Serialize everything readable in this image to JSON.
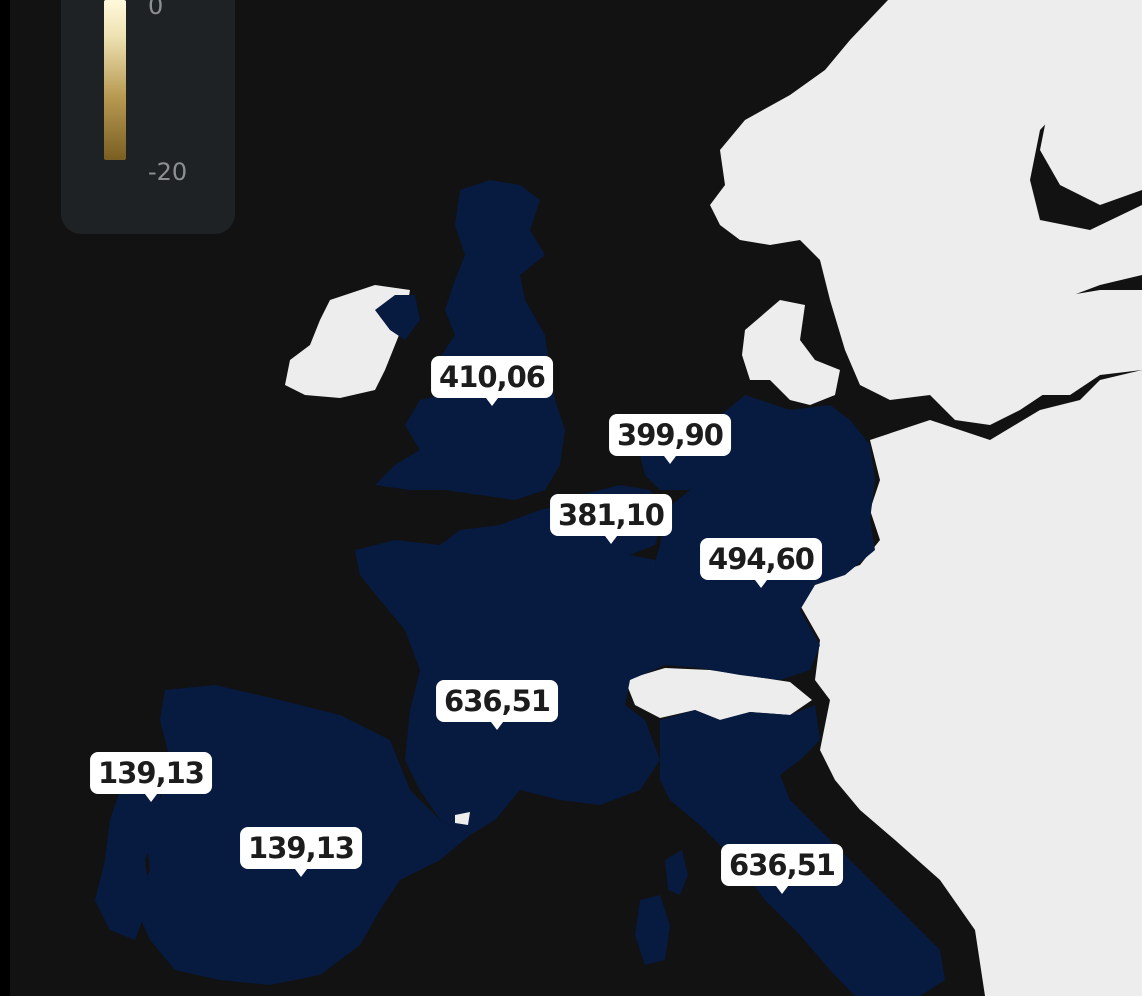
{
  "legend": {
    "max_label": "0",
    "min_label": "-20"
  },
  "colors": {
    "background": "#121212",
    "highlight_region": "#071a40",
    "other_land": "#ededed",
    "callout_bg": "#ffffff"
  },
  "regions": [
    {
      "id": "uk",
      "label": "410,06"
    },
    {
      "id": "netherlands",
      "label": "399,90"
    },
    {
      "id": "belgium",
      "label": "381,10"
    },
    {
      "id": "germany",
      "label": "494,60"
    },
    {
      "id": "france",
      "label": "636,51"
    },
    {
      "id": "portugal",
      "label": "139,13"
    },
    {
      "id": "spain",
      "label": "139,13"
    },
    {
      "id": "italy",
      "label": "636,51"
    }
  ]
}
